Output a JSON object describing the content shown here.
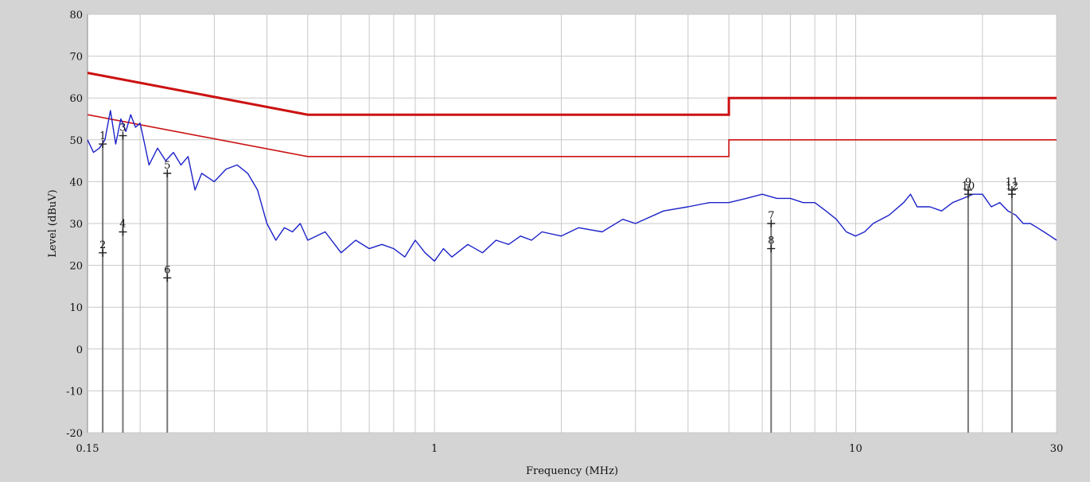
{
  "chart_data": {
    "type": "line",
    "xlabel": "Frequency (MHz)",
    "ylabel": "Level (dBuV)",
    "xscale": "log",
    "xlim": [
      0.15,
      30
    ],
    "ylim": [
      -20,
      80
    ],
    "grid": true,
    "x_tick_labels": [
      {
        "value": 0.15,
        "label": "0.15"
      },
      {
        "value": 1,
        "label": "1"
      },
      {
        "value": 10,
        "label": "10"
      },
      {
        "value": 30,
        "label": "30"
      }
    ],
    "y_tick_labels": [
      "80",
      "70",
      "60",
      "50",
      "40",
      "30",
      "20",
      "10",
      "0",
      "-10",
      "-20"
    ],
    "colors": {
      "limit": "#cc1111",
      "limit_av": "#cc1111",
      "trace": "#1c22c8",
      "marker": "#777777"
    },
    "limit_lines": [
      {
        "x": [
          0.15,
          0.5,
          0.5,
          5,
          5,
          30
        ],
        "y": [
          66,
          56,
          56,
          56,
          60,
          60
        ]
      },
      {
        "x": [
          0.15,
          0.5,
          0.5,
          5,
          5,
          30
        ],
        "y": [
          56,
          46,
          46,
          46,
          50,
          50
        ]
      }
    ],
    "series": [
      {
        "x": [
          0.15,
          0.155,
          0.16,
          0.165,
          0.17,
          0.175,
          0.18,
          0.185,
          0.19,
          0.195,
          0.2,
          0.205,
          0.21,
          0.22,
          0.23,
          0.24,
          0.25,
          0.26,
          0.27,
          0.28,
          0.3,
          0.32,
          0.34,
          0.36,
          0.38,
          0.4,
          0.42,
          0.44,
          0.46,
          0.48,
          0.5,
          0.55,
          0.6,
          0.65,
          0.7,
          0.75,
          0.8,
          0.85,
          0.9,
          0.95,
          1.0,
          1.05,
          1.1,
          1.2,
          1.3,
          1.4,
          1.5,
          1.6,
          1.7,
          1.8,
          2.0,
          2.2,
          2.5,
          2.8,
          3.0,
          3.5,
          4.0,
          4.5,
          5.0,
          5.5,
          6.0,
          6.5,
          7.0,
          7.5,
          8.0,
          8.5,
          9.0,
          9.5,
          10.0,
          10.5,
          11.0,
          12.0,
          13.0,
          13.5,
          14.0,
          15.0,
          16.0,
          17.0,
          18.0,
          19.0,
          20.0,
          21.0,
          22.0,
          23.0,
          24.0,
          25.0,
          26.0,
          27.0,
          28.0,
          29.0,
          30.0
        ],
        "y": [
          50,
          47,
          48,
          50,
          57,
          49,
          55,
          52,
          56,
          53,
          54,
          49,
          44,
          48,
          45,
          47,
          44,
          46,
          38,
          42,
          40,
          43,
          44,
          42,
          38,
          30,
          26,
          29,
          28,
          30,
          26,
          28,
          23,
          26,
          24,
          25,
          24,
          22,
          26,
          23,
          21,
          24,
          22,
          25,
          23,
          26,
          25,
          27,
          26,
          28,
          27,
          29,
          28,
          31,
          30,
          33,
          34,
          35,
          35,
          36,
          37,
          36,
          36,
          35,
          35,
          33,
          31,
          28,
          27,
          28,
          30,
          32,
          35,
          37,
          34,
          34,
          33,
          35,
          36,
          37,
          37,
          34,
          35,
          33,
          32,
          30,
          30,
          29,
          28,
          27,
          26
        ]
      }
    ],
    "markers": [
      {
        "label": "1",
        "x": 0.163,
        "y": 49
      },
      {
        "label": "2",
        "x": 0.163,
        "y": 23
      },
      {
        "label": "3",
        "x": 0.182,
        "y": 51
      },
      {
        "label": "4",
        "x": 0.182,
        "y": 28
      },
      {
        "label": "5",
        "x": 0.232,
        "y": 42
      },
      {
        "label": "6",
        "x": 0.232,
        "y": 17
      },
      {
        "label": "7",
        "x": 6.3,
        "y": 30
      },
      {
        "label": "8",
        "x": 6.3,
        "y": 24
      },
      {
        "label": "9",
        "x": 18.5,
        "y": 38
      },
      {
        "label": "10",
        "x": 18.5,
        "y": 37
      },
      {
        "label": "11",
        "x": 23.5,
        "y": 38
      },
      {
        "label": "12",
        "x": 23.5,
        "y": 37
      }
    ]
  }
}
